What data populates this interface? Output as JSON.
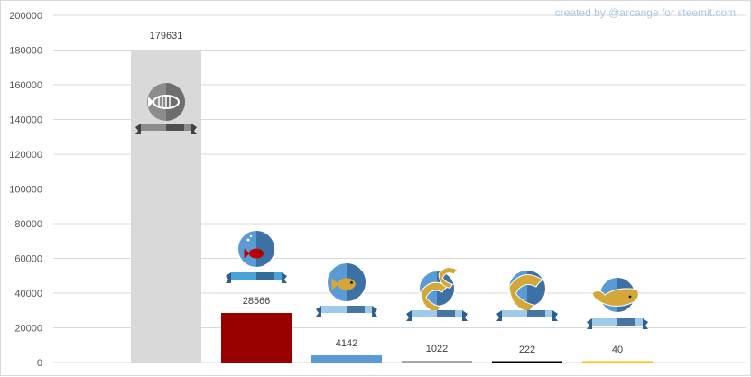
{
  "watermark": "created by @arcange for steemit.com",
  "chart_data": {
    "type": "bar",
    "title": "",
    "xlabel": "",
    "ylabel": "",
    "ylim": [
      0,
      200000
    ],
    "yticks": [
      0,
      20000,
      40000,
      60000,
      80000,
      100000,
      120000,
      140000,
      160000,
      180000,
      200000
    ],
    "grid": true,
    "categories": [
      "",
      "",
      "",
      "",
      "",
      ""
    ],
    "values": [
      179631,
      28566,
      4142,
      1022,
      222,
      40
    ],
    "bar_colors": [
      "#d9d9d9",
      "#990000",
      "#5b9bd5",
      "#a6a6a6",
      "#000000",
      "#ffc000"
    ],
    "icons": [
      "dead-fish-icon",
      "redfish-icon",
      "minnow-icon",
      "dolphin-icon",
      "orca-icon",
      "whale-icon"
    ],
    "data_labels": [
      "179631",
      "28566",
      "4142",
      "1022",
      "222",
      "40"
    ]
  },
  "colors": {
    "gold": "#d4a73a",
    "blue_globe": "#5b9bd5",
    "dark_blue": "#2e5f8f",
    "grid": "#d9d9d9",
    "tick_text": "#595959"
  }
}
